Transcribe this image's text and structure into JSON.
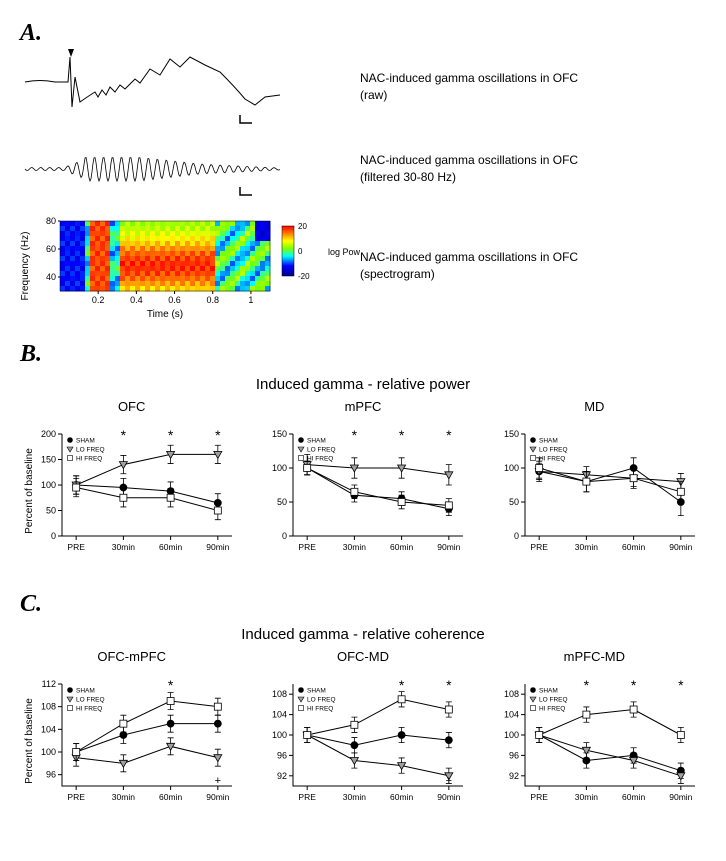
{
  "panelA": {
    "label": "A.",
    "traces": [
      {
        "label": "NAC-induced gamma oscillations in OFC\n(raw)"
      },
      {
        "label": "NAC-induced gamma oscillations in OFC\n(filtered 30-80 Hz)"
      }
    ],
    "spectrogram": {
      "label": "NAC-induced gamma oscillations in OFC\n(spectrogram)",
      "xlabel": "Time (s)",
      "ylabel": "Frequency (Hz)",
      "xticks": [
        0.2,
        0.4,
        0.6,
        0.8,
        1
      ],
      "yticks": [
        40,
        60,
        80
      ],
      "colorbar_label": "log Power",
      "colorbar_ticks": [
        20,
        0,
        -20
      ]
    }
  },
  "panelB": {
    "label": "B.",
    "title": "Induced gamma - relative power",
    "ylabel": "Percent of baseline",
    "xticks": [
      "PRE",
      "30min",
      "60min",
      "90min"
    ],
    "legend": [
      "SHAM",
      "LO FREQ",
      "HI FREQ"
    ],
    "markers": [
      "filled-circle",
      "down-triangle",
      "open-square"
    ],
    "colors": {
      "line": "#000000",
      "fill_sham": "#000000",
      "fill_lo": "#a0a0a0",
      "fill_hi": "#ffffff"
    },
    "charts": [
      {
        "title": "OFC",
        "ylim": [
          0,
          200
        ],
        "ytick_step": 50,
        "series": {
          "SHAM": [
            100,
            95,
            88,
            65
          ],
          "LO FREQ": [
            100,
            140,
            160,
            160
          ],
          "HI FREQ": [
            95,
            75,
            75,
            50
          ]
        },
        "errors": {
          "SHAM": [
            18,
            18,
            18,
            18
          ],
          "LO FREQ": [
            18,
            18,
            18,
            18
          ],
          "HI FREQ": [
            18,
            18,
            18,
            18
          ]
        },
        "sig": {
          "30min": "*",
          "60min": "*",
          "90min": "*"
        }
      },
      {
        "title": "mPFC",
        "ylim": [
          0,
          150
        ],
        "ytick_step": 50,
        "series": {
          "SHAM": [
            100,
            60,
            55,
            40
          ],
          "LO FREQ": [
            105,
            100,
            100,
            90
          ],
          "HI FREQ": [
            100,
            65,
            50,
            45
          ]
        },
        "errors": {
          "SHAM": [
            10,
            10,
            10,
            10
          ],
          "LO FREQ": [
            15,
            15,
            15,
            15
          ],
          "HI FREQ": [
            10,
            10,
            10,
            10
          ]
        },
        "sig": {
          "30min": "*",
          "60min": "*",
          "90min": "*"
        }
      },
      {
        "title": "MD",
        "ylim": [
          0,
          150
        ],
        "ytick_step": 50,
        "series": {
          "SHAM": [
            95,
            80,
            100,
            50
          ],
          "LO FREQ": [
            95,
            90,
            85,
            80
          ],
          "HI FREQ": [
            100,
            80,
            85,
            65
          ]
        },
        "errors": {
          "SHAM": [
            15,
            15,
            15,
            20
          ],
          "LO FREQ": [
            12,
            12,
            12,
            12
          ],
          "HI FREQ": [
            15,
            15,
            15,
            15
          ]
        },
        "sig": {}
      }
    ]
  },
  "panelC": {
    "label": "C.",
    "title": "Induced gamma - relative coherence",
    "ylabel": "Percent of baseline",
    "xticks": [
      "PRE",
      "30min",
      "60min",
      "90min"
    ],
    "legend": [
      "SHAM",
      "LO FREQ",
      "HI FREQ"
    ],
    "charts": [
      {
        "title": "OFC-mPFC",
        "ylim": [
          94,
          112
        ],
        "yticks": [
          96,
          100,
          104,
          108,
          112
        ],
        "series": {
          "SHAM": [
            100,
            103,
            105,
            105
          ],
          "LO FREQ": [
            99,
            98,
            101,
            99
          ],
          "HI FREQ": [
            100,
            105,
            109,
            108
          ]
        },
        "errors": {
          "SHAM": [
            1.5,
            1.5,
            1.5,
            1.5
          ],
          "LO FREQ": [
            1.5,
            1.5,
            1.5,
            1.5
          ],
          "HI FREQ": [
            1.5,
            1.5,
            1.5,
            1.5
          ]
        },
        "sig": {
          "60min": "*"
        },
        "sig2": {
          "90min": "+"
        }
      },
      {
        "title": "OFC-MD",
        "ylim": [
          90,
          110
        ],
        "yticks": [
          92,
          96,
          100,
          104,
          108
        ],
        "series": {
          "SHAM": [
            100,
            98,
            100,
            99
          ],
          "LO FREQ": [
            100,
            95,
            94,
            92
          ],
          "HI FREQ": [
            100,
            102,
            107,
            105
          ]
        },
        "errors": {
          "SHAM": [
            1.5,
            1.5,
            1.5,
            1.5
          ],
          "LO FREQ": [
            1.5,
            1.5,
            1.5,
            1.5
          ],
          "HI FREQ": [
            1.5,
            1.5,
            1.5,
            1.5
          ]
        },
        "sig": {
          "60min": "*",
          "90min": "*"
        },
        "sig2": {
          "90min": "+"
        }
      },
      {
        "title": "mPFC-MD",
        "ylim": [
          90,
          110
        ],
        "yticks": [
          92,
          96,
          100,
          104,
          108
        ],
        "series": {
          "SHAM": [
            100,
            95,
            96,
            93
          ],
          "LO FREQ": [
            100,
            97,
            95,
            92
          ],
          "HI FREQ": [
            100,
            104,
            105,
            100
          ]
        },
        "errors": {
          "SHAM": [
            1.5,
            1.5,
            1.5,
            1.5
          ],
          "LO FREQ": [
            1.5,
            1.5,
            1.5,
            1.5
          ],
          "HI FREQ": [
            1.5,
            1.5,
            1.5,
            1.5
          ]
        },
        "sig": {
          "30min": "*",
          "60min": "*",
          "90min": "*"
        }
      }
    ]
  }
}
